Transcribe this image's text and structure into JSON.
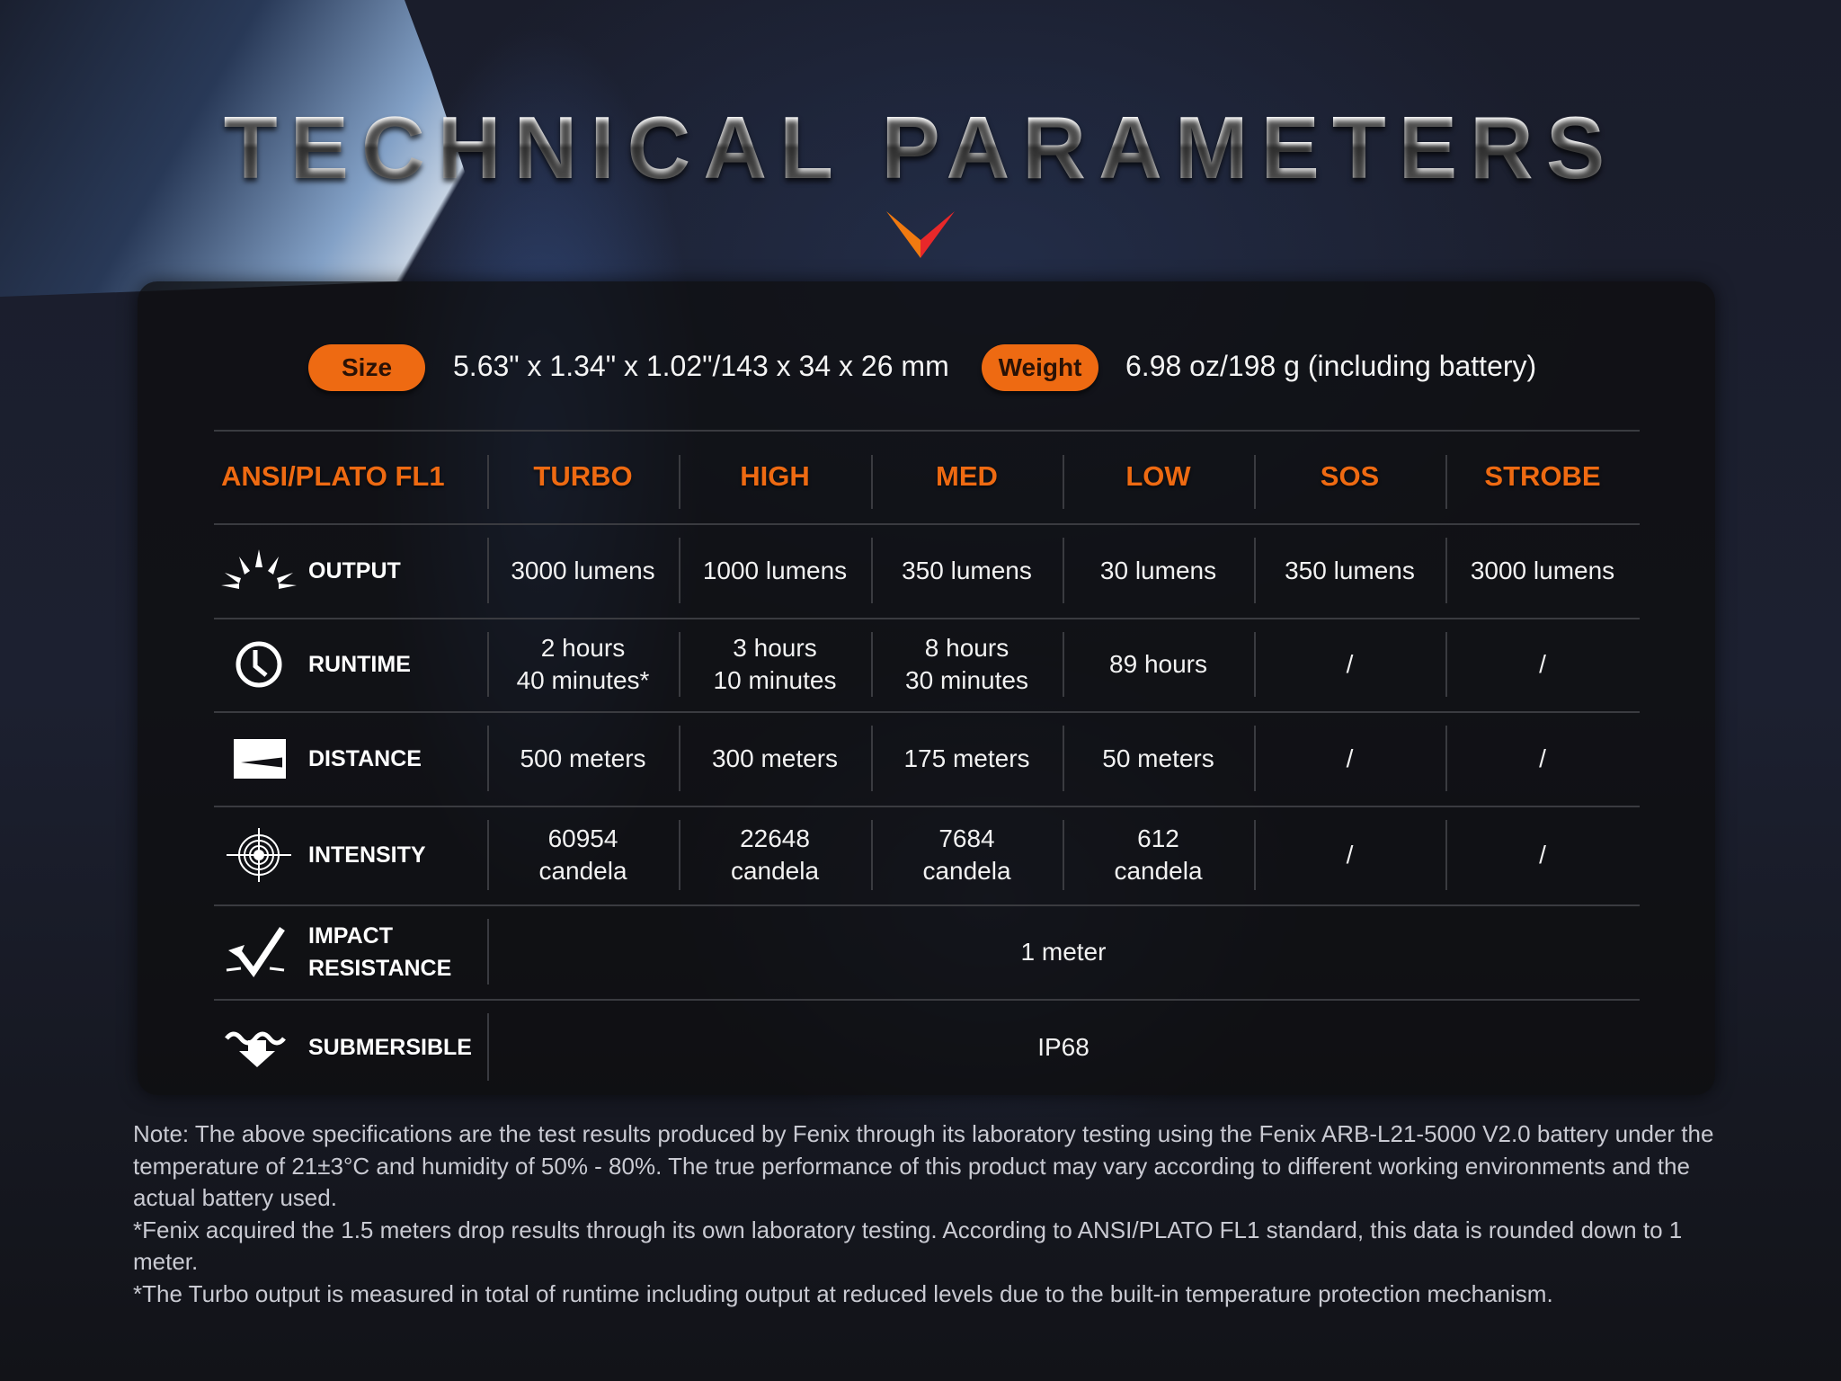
{
  "title": "TECHNICAL PARAMETERS",
  "colors": {
    "accent": "#ee6a12",
    "chevron_left": "#f07a10",
    "chevron_right": "#e8282a"
  },
  "size": {
    "label": "Size",
    "value": "5.63\" x 1.34\" x 1.02\"/143 x 34 x 26 mm"
  },
  "weight": {
    "label": "Weight",
    "value": "6.98 oz/198 g (including battery)"
  },
  "table": {
    "columns": [
      "ANSI/PLATO FL1",
      "TURBO",
      "HIGH",
      "MED",
      "LOW",
      "SOS",
      "STROBE"
    ],
    "rows": [
      {
        "icon": "sun-rays-icon",
        "label": "OUTPUT",
        "cells": [
          "3000 lumens",
          "1000 lumens",
          "350 lumens",
          "30 lumens",
          "350 lumens",
          "3000 lumens"
        ]
      },
      {
        "icon": "clock-icon",
        "label": "RUNTIME",
        "cells": [
          "2 hours\n40 minutes*",
          "3 hours\n10 minutes",
          "8 hours\n30 minutes",
          "89 hours",
          "/",
          "/"
        ]
      },
      {
        "icon": "beam-distance-icon",
        "label": "DISTANCE",
        "cells": [
          "500 meters",
          "300 meters",
          "175 meters",
          "50 meters",
          "/",
          "/"
        ]
      },
      {
        "icon": "target-icon",
        "label": "INTENSITY",
        "cells": [
          "60954\ncandela",
          "22648\ncandela",
          "7684\ncandela",
          "612\ncandela",
          "/",
          "/"
        ]
      },
      {
        "icon": "impact-check-icon",
        "label": "IMPACT\nRESISTANCE",
        "span": "1 meter"
      },
      {
        "icon": "submersible-icon",
        "label": "SUBMERSIBLE",
        "span": "IP68"
      }
    ]
  },
  "notes": [
    "Note: The above specifications are the test results produced by Fenix through its laboratory testing using the Fenix ARB-L21-5000 V2.0 battery under the temperature of 21±3°C and humidity of 50% - 80%. The true performance of this product may vary according to different working environments and the actual battery used.",
    "*Fenix acquired the 1.5 meters drop results through its own laboratory testing. According to ANSI/PLATO FL1 standard, this data is rounded down to 1 meter.",
    "*The Turbo output is measured in total of runtime including output at reduced levels due to the built-in temperature protection mechanism."
  ]
}
